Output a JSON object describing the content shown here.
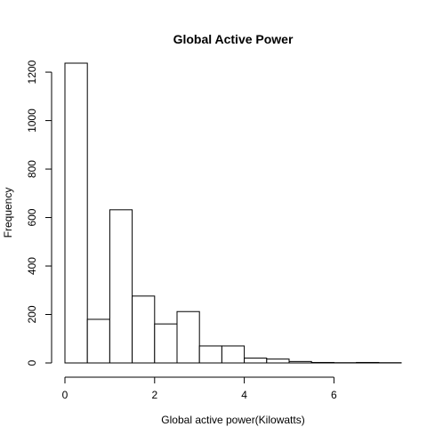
{
  "chart_data": {
    "type": "bar",
    "subtype": "histogram",
    "title": "Global Active Power",
    "xlabel": "Global active power(Kilowatts)",
    "ylabel": "Frequency",
    "bin_edges": [
      0,
      0.5,
      1,
      1.5,
      2,
      2.5,
      3,
      3.5,
      4,
      4.5,
      5,
      5.5,
      6,
      6.5,
      7,
      7.5
    ],
    "values": [
      1237,
      180,
      632,
      276,
      161,
      212,
      70,
      70,
      20,
      16,
      6,
      2,
      1,
      2,
      1
    ],
    "xlim": [
      0,
      7.5
    ],
    "ylim": [
      0,
      1237
    ],
    "x_ticks": [
      0,
      2,
      4,
      6
    ],
    "y_ticks": [
      0,
      200,
      400,
      600,
      800,
      1000,
      1200
    ],
    "x_tick_labels": [
      "0",
      "2",
      "4",
      "6"
    ],
    "y_tick_labels": [
      "0",
      "200",
      "400",
      "600",
      "800",
      "1000",
      "1200"
    ],
    "colors": {
      "bar_fill": "#ffffff",
      "bar_stroke": "#000000",
      "axis": "#000000"
    }
  }
}
